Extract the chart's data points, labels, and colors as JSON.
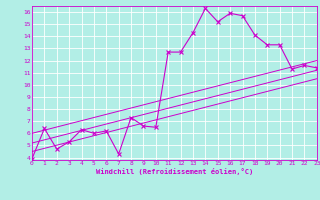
{
  "title": "",
  "xlabel": "Windchill (Refroidissement éolien,°C)",
  "ylabel": "",
  "bg_color": "#b2eee6",
  "line_color": "#cc00cc",
  "grid_color": "#ffffff",
  "xmin": 0,
  "xmax": 23,
  "ymin": 4,
  "ymax": 16,
  "curve1_x": [
    0,
    1,
    2,
    3,
    4,
    5,
    6,
    7,
    8,
    9,
    10,
    11,
    12,
    13,
    14,
    15,
    16,
    17,
    18,
    19,
    20,
    21,
    22,
    23
  ],
  "curve1_y": [
    3.9,
    6.4,
    4.7,
    5.3,
    6.3,
    6.0,
    6.2,
    4.3,
    7.3,
    6.6,
    6.5,
    12.7,
    12.7,
    14.3,
    16.3,
    15.2,
    15.9,
    15.7,
    14.1,
    13.3,
    13.3,
    11.3,
    11.6,
    11.4
  ],
  "line1_x": [
    0,
    23
  ],
  "line1_y": [
    4.5,
    10.5
  ],
  "line2_x": [
    0,
    23
  ],
  "line2_y": [
    5.2,
    11.2
  ],
  "line3_x": [
    0,
    23
  ],
  "line3_y": [
    6.0,
    12.0
  ]
}
